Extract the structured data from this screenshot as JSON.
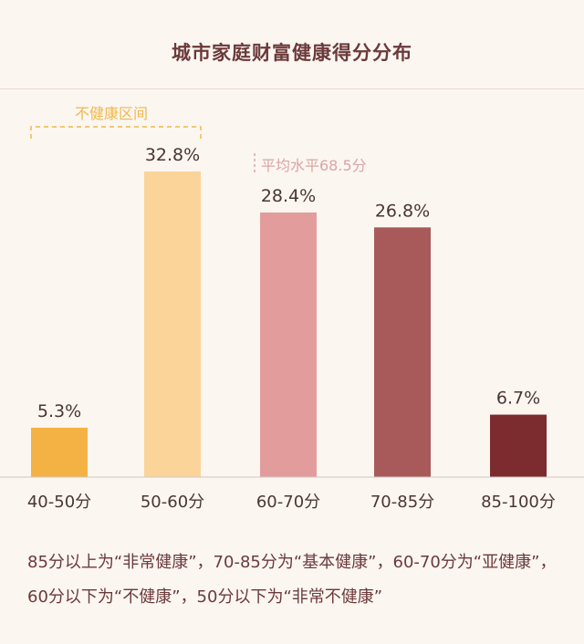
{
  "title": "城市家庭财富健康得分分布",
  "annotations": {
    "unhealthy_zone": "不健康区间",
    "average": "平均水平68.5分"
  },
  "footnote": "85分以上为“非常健康”，70-85分为“基本健康”，60-70分为“亚健康”，60分以下为“不健康”，50分以下为“非常不健康”",
  "colors": {
    "bars": [
      "#f5b244",
      "#fbd49a",
      "#e29c9c",
      "#a85a5a",
      "#7c2b2e"
    ],
    "annotation_unhealthy": "#f0b84a",
    "annotation_average": "#d9a5a5",
    "text": "#4a3535"
  },
  "chart_data": {
    "type": "bar",
    "title": "城市家庭财富健康得分分布",
    "categories": [
      "40-50分",
      "50-60分",
      "60-70分",
      "70-85分",
      "85-100分"
    ],
    "values": [
      5.3,
      32.8,
      28.4,
      26.8,
      6.7
    ],
    "value_labels": [
      "5.3%",
      "32.8%",
      "28.4%",
      "26.8%",
      "6.7%"
    ],
    "ylim": [
      0,
      40
    ],
    "grid": false
  }
}
